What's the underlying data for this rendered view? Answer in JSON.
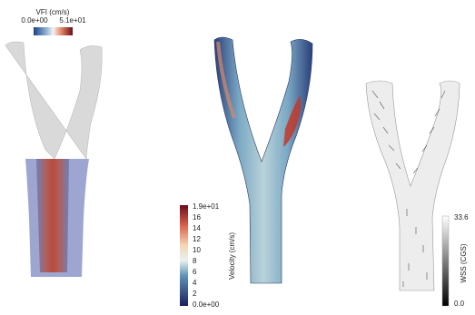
{
  "panels": [
    {
      "colorbar": {
        "title": "VFI (cm/s)",
        "min_label": "0.0e+00",
        "max_label": "5.1e+01"
      }
    },
    {
      "colorbar": {
        "title": "Velocity (cm/s)",
        "labels": [
          "1.9e+01",
          "16",
          "14",
          "12",
          "10",
          "8",
          "6",
          "4",
          "2",
          "0.0e+00"
        ]
      }
    },
    {
      "colorbar": {
        "title": "WSS (CGS)",
        "max_label": "33.6",
        "min_label": "0.0"
      }
    }
  ]
}
